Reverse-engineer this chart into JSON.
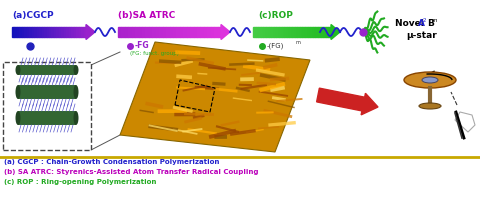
{
  "bg_color": "#ffffff",
  "gold_line_color": "#C8A800",
  "label_a_color": "#2222cc",
  "label_b_color": "#bb00bb",
  "label_c_color": "#22aa22",
  "foot_a_color": "#2222cc",
  "foot_b_color": "#bb00bb",
  "foot_c_color": "#22aa22",
  "foot_a": "(a) CGCP : Chain-Growth Condensation Polymerization",
  "foot_b": "(b) SA ATRC: Styrenics-Assisted Atom Transfer Radical Coupling",
  "foot_c": "(c) ROP : Ring-opening Polymerization",
  "arrow1_c1": "#1111bb",
  "arrow1_c2": "#9922cc",
  "arrow2_c1": "#aa22cc",
  "arrow2_c2": "#dd33dd",
  "arrow3_c1": "#44cc44",
  "arrow3_c2": "#22bb22",
  "blue_chain_color": "#2222cc",
  "green_arm_color": "#22aa22",
  "purple_dot_color": "#9922cc",
  "green_dot_color": "#22aa22",
  "blue_dot_color": "#2222bb",
  "red_arrow_color": "#cc2222",
  "afm_base_color": "#cc8800",
  "novel_text_color": "#000000",
  "novel_a2_color": "#2222cc",
  "novel_bm_color": "#000000"
}
